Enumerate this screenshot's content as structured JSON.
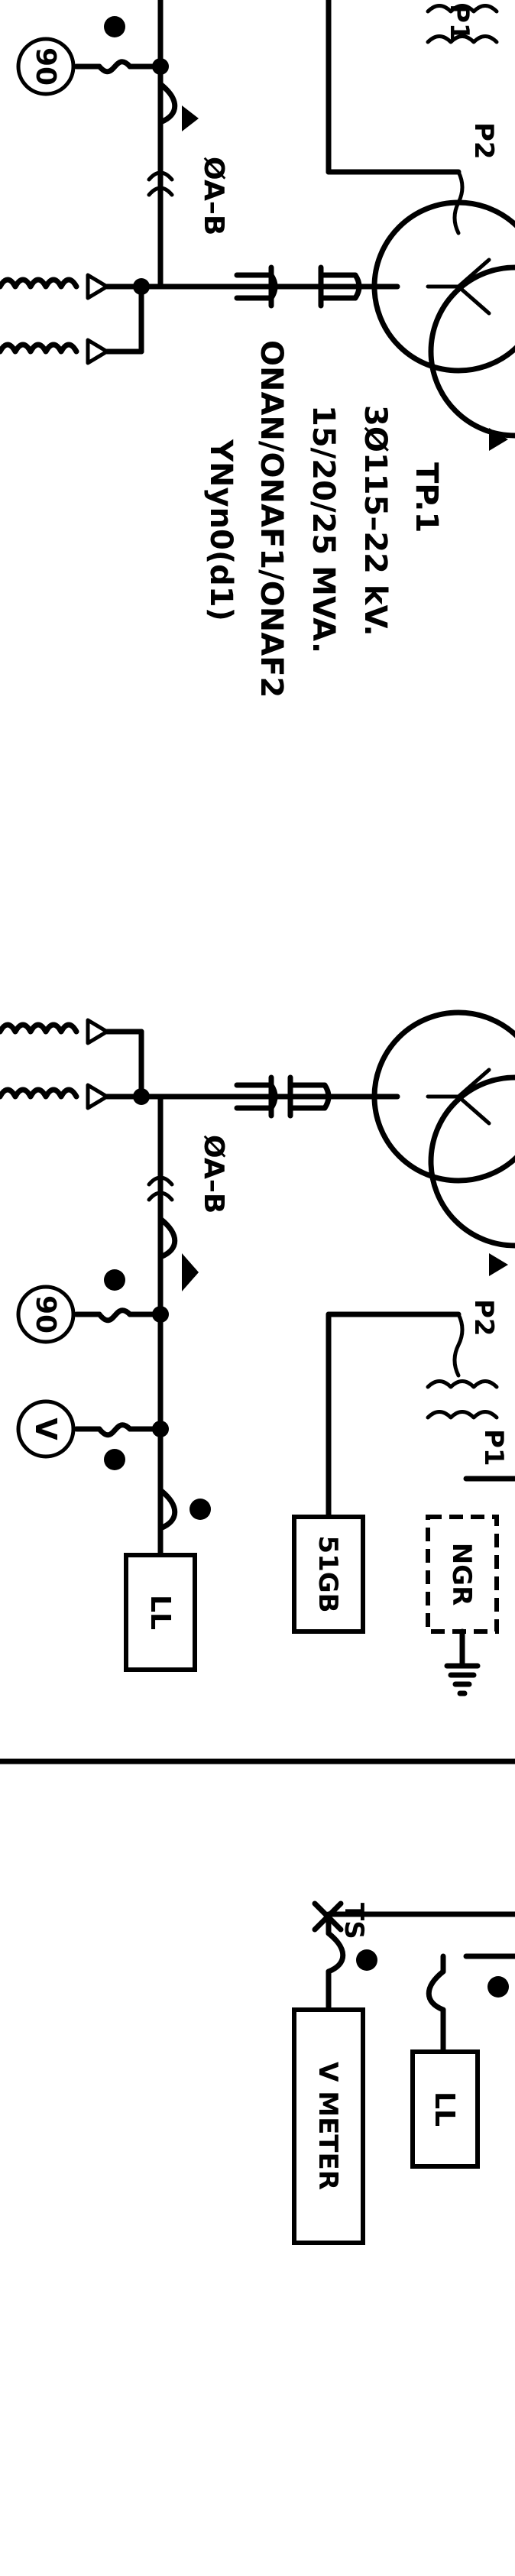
{
  "labels": {
    "relay_90_top": "90",
    "phase_top": "ØA–B",
    "tp_name": "TP.1",
    "tp_voltage": "3Ø115–22  kV.",
    "tp_rating": "15/20/25  MVA.",
    "tp_cooling": "ONAN/ONAF1/ONAF2",
    "tp_vector": "YNyn0(d1)",
    "ct_p1_top": "P1",
    "ct_p2_top": "P2",
    "phase_mid": "ØA–B",
    "relay_90_mid": "90",
    "voltmeter_symbol": "V",
    "box_ll_mid": "LL",
    "box_51gb": "51GB",
    "ct_p2_mid": "P2",
    "ct_p1_mid": "P1",
    "box_ngr": "NGR",
    "ts_label": "TS",
    "box_ll_bottom": "LL",
    "box_vmeter": "V METER"
  }
}
